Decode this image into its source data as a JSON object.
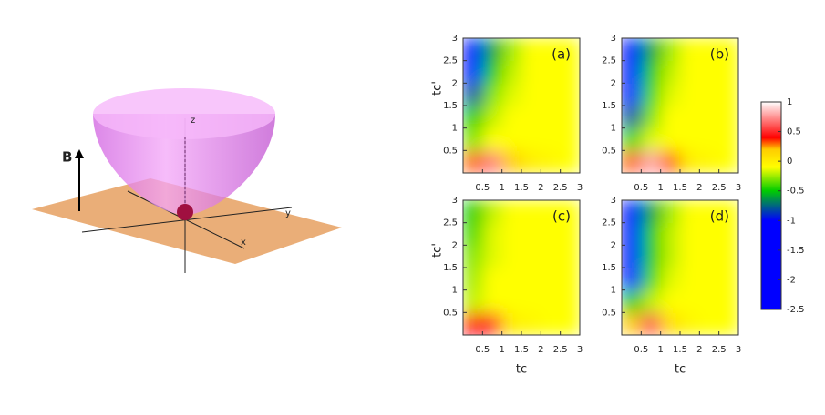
{
  "diagram": {
    "labels": {
      "field": "B",
      "z": "z",
      "y": "y",
      "x": "x"
    }
  },
  "colorbar": {
    "zlim": [
      -2.5,
      1
    ],
    "ticks": [
      1,
      0.5,
      0,
      -0.5,
      -1,
      -1.5,
      -2,
      -2.5
    ],
    "colorscale": [
      [
        -2.5,
        "#0000ff"
      ],
      [
        -1,
        "#0000ff"
      ],
      [
        -0.5,
        "#00cc00"
      ],
      [
        -0.1,
        "#ffff00"
      ],
      [
        0.2,
        "#ffcc00"
      ],
      [
        0.4,
        "#ff0000"
      ],
      [
        1,
        "#ffffff"
      ]
    ]
  },
  "chart_data": [
    {
      "type": "heatmap",
      "label": "(a)",
      "xlim": [
        0,
        3
      ],
      "ylim": [
        0,
        3
      ],
      "xticks": [
        0.5,
        1,
        1.5,
        2,
        2.5,
        3
      ],
      "yticks": [
        0.5,
        1,
        1.5,
        2,
        2.5,
        3
      ],
      "ylabel": "tc'",
      "z": [
        [
          0.3,
          0.7,
          0.2,
          0,
          -0.05,
          -0.1
        ],
        [
          -0.3,
          -0.1,
          -0.1,
          -0.1,
          -0.1,
          -0.1
        ],
        [
          -0.5,
          -0.2,
          -0.1,
          -0.1,
          -0.1,
          -0.1
        ],
        [
          -0.8,
          -0.3,
          -0.15,
          -0.1,
          -0.1,
          -0.1
        ],
        [
          -1.2,
          -0.5,
          -0.2,
          -0.1,
          -0.1,
          -0.1
        ],
        [
          -2,
          -0.6,
          -0.25,
          -0.1,
          -0.1,
          -0.1
        ]
      ]
    },
    {
      "type": "heatmap",
      "label": "(b)",
      "xlim": [
        0,
        3
      ],
      "ylim": [
        0,
        3
      ],
      "xticks": [
        0.5,
        1,
        1.5,
        2,
        2.5,
        3
      ],
      "yticks": [
        0.5,
        1,
        1.5,
        2,
        2.5,
        3
      ],
      "z": [
        [
          0.3,
          0.8,
          0.3,
          0,
          -0.05,
          -0.1
        ],
        [
          -0.4,
          -0.15,
          -0.1,
          -0.1,
          -0.1,
          -0.1
        ],
        [
          -0.8,
          -0.3,
          -0.1,
          -0.1,
          -0.1,
          -0.1
        ],
        [
          -1.3,
          -0.4,
          -0.15,
          -0.1,
          -0.1,
          -0.1
        ],
        [
          -2,
          -0.5,
          -0.2,
          -0.1,
          -0.1,
          -0.1
        ],
        [
          -2.5,
          -0.6,
          -0.25,
          -0.1,
          -0.1,
          -0.1
        ]
      ]
    },
    {
      "type": "heatmap",
      "label": "(c)",
      "xlim": [
        0,
        3
      ],
      "ylim": [
        0,
        3
      ],
      "xticks": [
        0.5,
        1,
        1.5,
        2,
        2.5,
        3
      ],
      "yticks": [
        0.5,
        1,
        1.5,
        2,
        2.5,
        3
      ],
      "xlabel": "tc",
      "ylabel": "tc'",
      "z": [
        [
          0.4,
          0.5,
          0,
          -0.05,
          -0.1,
          -0.1
        ],
        [
          -0.2,
          -0.1,
          -0.1,
          -0.1,
          -0.1,
          -0.1
        ],
        [
          -0.25,
          -0.1,
          -0.1,
          -0.1,
          -0.1,
          -0.1
        ],
        [
          -0.3,
          -0.15,
          -0.1,
          -0.1,
          -0.1,
          -0.1
        ],
        [
          -0.4,
          -0.15,
          -0.1,
          -0.1,
          -0.1,
          -0.1
        ],
        [
          -0.5,
          -0.2,
          -0.1,
          -0.1,
          -0.1,
          -0.1
        ]
      ]
    },
    {
      "type": "heatmap",
      "label": "(d)",
      "xlim": [
        0,
        3
      ],
      "ylim": [
        0,
        3
      ],
      "xticks": [
        0.5,
        1,
        1.5,
        2,
        2.5,
        3
      ],
      "yticks": [
        0.5,
        1,
        1.5,
        2,
        2.5,
        3
      ],
      "xlabel": "tc",
      "z": [
        [
          0.2,
          0.6,
          0.1,
          -0.05,
          -0.1,
          -0.1
        ],
        [
          -0.5,
          -0.2,
          -0.1,
          -0.1,
          -0.1,
          -0.1
        ],
        [
          -1.5,
          -0.4,
          -0.15,
          -0.1,
          -0.1,
          -0.1
        ],
        [
          -2,
          -0.5,
          -0.2,
          -0.1,
          -0.1,
          -0.1
        ],
        [
          -2.5,
          -0.5,
          -0.2,
          -0.1,
          -0.1,
          -0.1
        ],
        [
          -2.5,
          -0.6,
          -0.25,
          -0.1,
          -0.1,
          -0.1
        ]
      ]
    }
  ]
}
